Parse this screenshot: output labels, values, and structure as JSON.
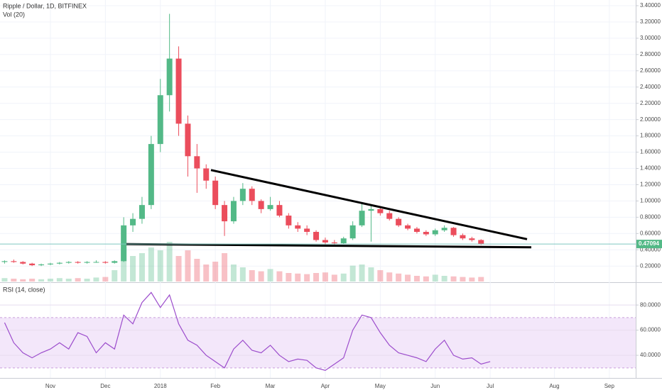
{
  "chart_data": [
    {
      "type": "candlestick",
      "title": "Ripple / Dollar, 1D, BITFINEX",
      "volume_title": "Vol (20)",
      "categories": [
        null,
        null,
        null,
        null,
        null,
        "Nov",
        null,
        null,
        null,
        null,
        null,
        "Dec",
        null,
        null,
        null,
        null,
        null,
        "2018",
        null,
        null,
        null,
        null,
        null,
        "Feb",
        null,
        null,
        null,
        null,
        null,
        "Mar",
        null,
        null,
        null,
        null,
        null,
        "Apr",
        null,
        null,
        null,
        null,
        null,
        "May",
        null,
        null,
        null,
        null,
        null,
        "Jun",
        null,
        null,
        null,
        null,
        null,
        "Jul",
        null,
        null,
        null,
        null,
        null,
        null,
        "Aug",
        null,
        null,
        null,
        null,
        null,
        "Sep",
        null,
        null
      ],
      "open": [
        0.25,
        0.26,
        0.25,
        0.23,
        0.21,
        0.22,
        0.23,
        0.24,
        0.25,
        0.24,
        0.25,
        0.25,
        0.24,
        0.26,
        0.7,
        0.78,
        0.95,
        1.7,
        2.3,
        2.75,
        1.95,
        1.55,
        1.4,
        1.25,
        0.95,
        0.75,
        1.0,
        1.15,
        1.0,
        0.9,
        0.95,
        0.82,
        0.7,
        0.66,
        0.62,
        0.52,
        0.49,
        0.48,
        0.54,
        0.7,
        0.88,
        0.9,
        0.85,
        0.78,
        0.7,
        0.66,
        0.62,
        0.59,
        0.64,
        0.67,
        0.58,
        0.54,
        0.52,
        null,
        null,
        null,
        null,
        null,
        null,
        null,
        null,
        null,
        null,
        null,
        null,
        null,
        null,
        null,
        null
      ],
      "high": [
        0.27,
        0.28,
        0.26,
        0.24,
        0.23,
        0.24,
        0.25,
        0.26,
        0.26,
        0.26,
        0.27,
        0.26,
        0.27,
        0.8,
        0.85,
        1.05,
        1.8,
        2.5,
        3.3,
        2.9,
        2.05,
        1.7,
        1.45,
        1.3,
        1.0,
        1.05,
        1.22,
        1.18,
        1.02,
        1.05,
        1.0,
        0.85,
        0.74,
        0.7,
        0.64,
        0.55,
        0.52,
        0.56,
        0.75,
        0.96,
        0.95,
        0.93,
        0.88,
        0.8,
        0.72,
        0.68,
        0.64,
        0.66,
        0.7,
        0.68,
        0.6,
        0.56,
        0.53,
        null,
        null,
        null,
        null,
        null,
        null,
        null,
        null,
        null,
        null,
        null,
        null,
        null,
        null,
        null,
        null
      ],
      "low": [
        0.23,
        0.24,
        0.22,
        0.2,
        0.2,
        0.21,
        0.22,
        0.23,
        0.23,
        0.23,
        0.24,
        0.23,
        0.23,
        0.25,
        0.62,
        0.72,
        0.9,
        1.6,
        2.1,
        1.8,
        1.3,
        1.1,
        1.15,
        0.9,
        0.57,
        0.72,
        0.95,
        0.95,
        0.85,
        0.88,
        0.8,
        0.66,
        0.62,
        0.58,
        0.5,
        0.46,
        0.46,
        0.47,
        0.52,
        0.68,
        0.5,
        0.82,
        0.76,
        0.68,
        0.64,
        0.6,
        0.57,
        0.57,
        0.62,
        0.56,
        0.52,
        0.5,
        0.46,
        null,
        null,
        null,
        null,
        null,
        null,
        null,
        null,
        null,
        null,
        null,
        null,
        null,
        null,
        null,
        null
      ],
      "close": [
        0.26,
        0.25,
        0.23,
        0.21,
        0.22,
        0.23,
        0.24,
        0.25,
        0.24,
        0.25,
        0.25,
        0.24,
        0.26,
        0.7,
        0.78,
        0.95,
        1.7,
        2.3,
        2.75,
        1.95,
        1.55,
        1.4,
        1.25,
        0.95,
        0.75,
        1.0,
        1.15,
        1.0,
        0.9,
        0.95,
        0.82,
        0.7,
        0.66,
        0.62,
        0.52,
        0.49,
        0.48,
        0.54,
        0.7,
        0.88,
        0.9,
        0.85,
        0.78,
        0.7,
        0.66,
        0.62,
        0.59,
        0.64,
        0.67,
        0.58,
        0.54,
        0.52,
        0.47,
        null,
        null,
        null,
        null,
        null,
        null,
        null,
        null,
        null,
        null,
        null,
        null,
        null,
        null,
        null,
        null
      ],
      "volume": [
        6,
        5,
        4,
        5,
        4,
        5,
        6,
        5,
        6,
        5,
        7,
        8,
        20,
        60,
        45,
        50,
        60,
        55,
        70,
        45,
        55,
        40,
        30,
        35,
        50,
        30,
        25,
        20,
        18,
        22,
        18,
        15,
        14,
        13,
        15,
        16,
        12,
        14,
        28,
        30,
        25,
        20,
        16,
        14,
        12,
        10,
        9,
        12,
        10,
        9,
        8,
        7,
        8,
        null,
        null,
        null,
        null,
        null,
        null,
        null,
        null,
        null,
        null,
        null,
        null,
        null,
        null,
        null,
        null
      ],
      "up_color": "#53b987",
      "down_color": "#eb4d5c",
      "ylim": [
        0.01,
        3.47
      ],
      "yticks": [
        {
          "value": 0.2,
          "label": "0.20000"
        },
        {
          "value": 0.4,
          "label": "0.40000"
        },
        {
          "value": 0.6,
          "label": "0.60000"
        },
        {
          "value": 0.8,
          "label": "0.80000"
        },
        {
          "value": 1.0,
          "label": "1.00000"
        },
        {
          "value": 1.2,
          "label": "1.20000"
        },
        {
          "value": 1.4,
          "label": "1.40000"
        },
        {
          "value": 1.6,
          "label": "1.60000"
        },
        {
          "value": 1.8,
          "label": "1.80000"
        },
        {
          "value": 2.0,
          "label": "2.00000"
        },
        {
          "value": 2.2,
          "label": "2.20000"
        },
        {
          "value": 2.4,
          "label": "2.40000"
        },
        {
          "value": 2.6,
          "label": "2.60000"
        },
        {
          "value": 2.8,
          "label": "2.80000"
        },
        {
          "value": 3.0,
          "label": "3.00000"
        },
        {
          "value": 3.2,
          "label": "3.20000"
        },
        {
          "value": 3.4,
          "label": "3.40000"
        }
      ],
      "grid": true,
      "last_price": 0.47094,
      "trendlines": [
        {
          "start": 1.38,
          "end": 0.53
        },
        {
          "start": 0.47,
          "end": 0.43
        }
      ]
    },
    {
      "type": "line",
      "title": "RSI (14, close)",
      "color": "#9c4dcc",
      "values": [
        66,
        50,
        42,
        38,
        42,
        45,
        50,
        45,
        58,
        55,
        42,
        50,
        45,
        72,
        65,
        82,
        90,
        78,
        88,
        65,
        52,
        48,
        40,
        35,
        30,
        45,
        52,
        44,
        42,
        48,
        40,
        35,
        37,
        36,
        30,
        28,
        33,
        38,
        60,
        72,
        70,
        58,
        48,
        42,
        40,
        38,
        35,
        45,
        52,
        40,
        37,
        38,
        33,
        35,
        null,
        null,
        null,
        null,
        null,
        null,
        null,
        null,
        null,
        null,
        null,
        null,
        null,
        null,
        null
      ],
      "ylim": [
        22,
        97
      ],
      "yticks": [
        {
          "value": 40,
          "label": "40.0000"
        },
        {
          "value": 60,
          "label": "60.0000"
        },
        {
          "value": 80,
          "label": "80.0000"
        }
      ],
      "band": [
        30,
        70
      ]
    }
  ]
}
